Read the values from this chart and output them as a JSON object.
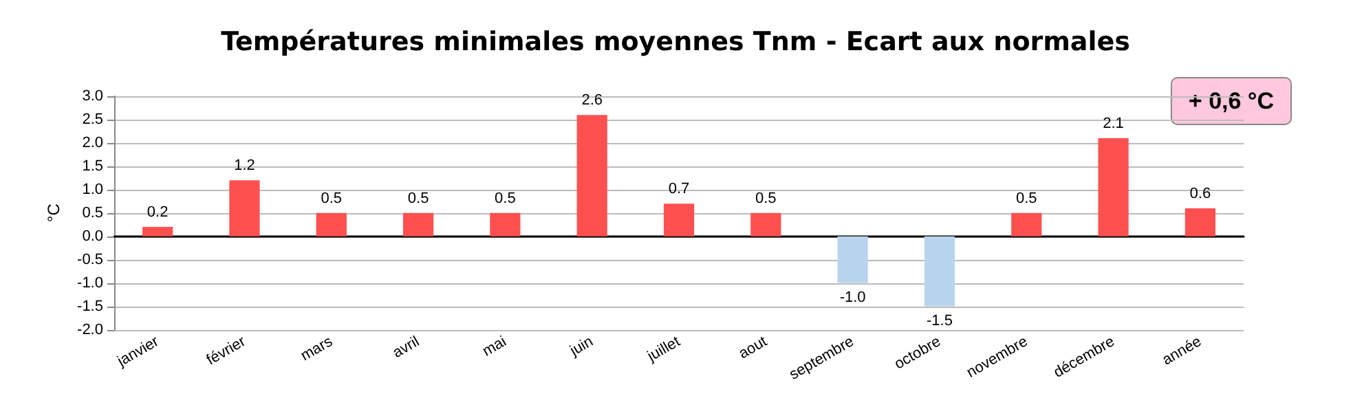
{
  "chart_data": {
    "type": "bar",
    "title": "Températures minimales moyennes Tnm - Ecart aux normales",
    "ylabel": "°C",
    "categories": [
      "janvier",
      "février",
      "mars",
      "avril",
      "mai",
      "juin",
      "juillet",
      "aout",
      "septembre",
      "octobre",
      "novembre",
      "décembre",
      "année"
    ],
    "values": [
      0.2,
      1.2,
      0.5,
      0.5,
      0.5,
      2.6,
      0.7,
      0.5,
      -1.0,
      -1.5,
      0.5,
      2.1,
      0.6
    ],
    "colors": [
      "#ff5050",
      "#ff5050",
      "#ff5050",
      "#ff5050",
      "#ff5050",
      "#ff5050",
      "#ff5050",
      "#ff5050",
      "#b8d4ee",
      "#b8d4ee",
      "#ff5050",
      "#ff5050",
      "#ff5050"
    ],
    "value_labels": [
      "0.2",
      "1.2",
      "0.5",
      "0.5",
      "0.5",
      "2.6",
      "0.7",
      "0.5",
      "-1.0",
      "-1.5",
      "0.5",
      "2.1",
      "0.6"
    ],
    "ylim": [
      -2,
      3
    ],
    "yticks": [
      {
        "value": -2,
        "label": "-2.0"
      },
      {
        "value": -1.5,
        "label": "-1.5"
      },
      {
        "value": -1,
        "label": "-1.0"
      },
      {
        "value": -0.5,
        "label": "-0.5"
      },
      {
        "value": 0,
        "label": "0.0"
      },
      {
        "value": 0.5,
        "label": "0.5"
      },
      {
        "value": 1,
        "label": "1.0"
      },
      {
        "value": 1.5,
        "label": "1.5"
      },
      {
        "value": 2,
        "label": "2.0"
      },
      {
        "value": 2.5,
        "label": "2.5"
      },
      {
        "value": 3,
        "label": "3.0"
      }
    ],
    "grid": "y",
    "annotations": [
      "+ 0,6 °C"
    ]
  }
}
